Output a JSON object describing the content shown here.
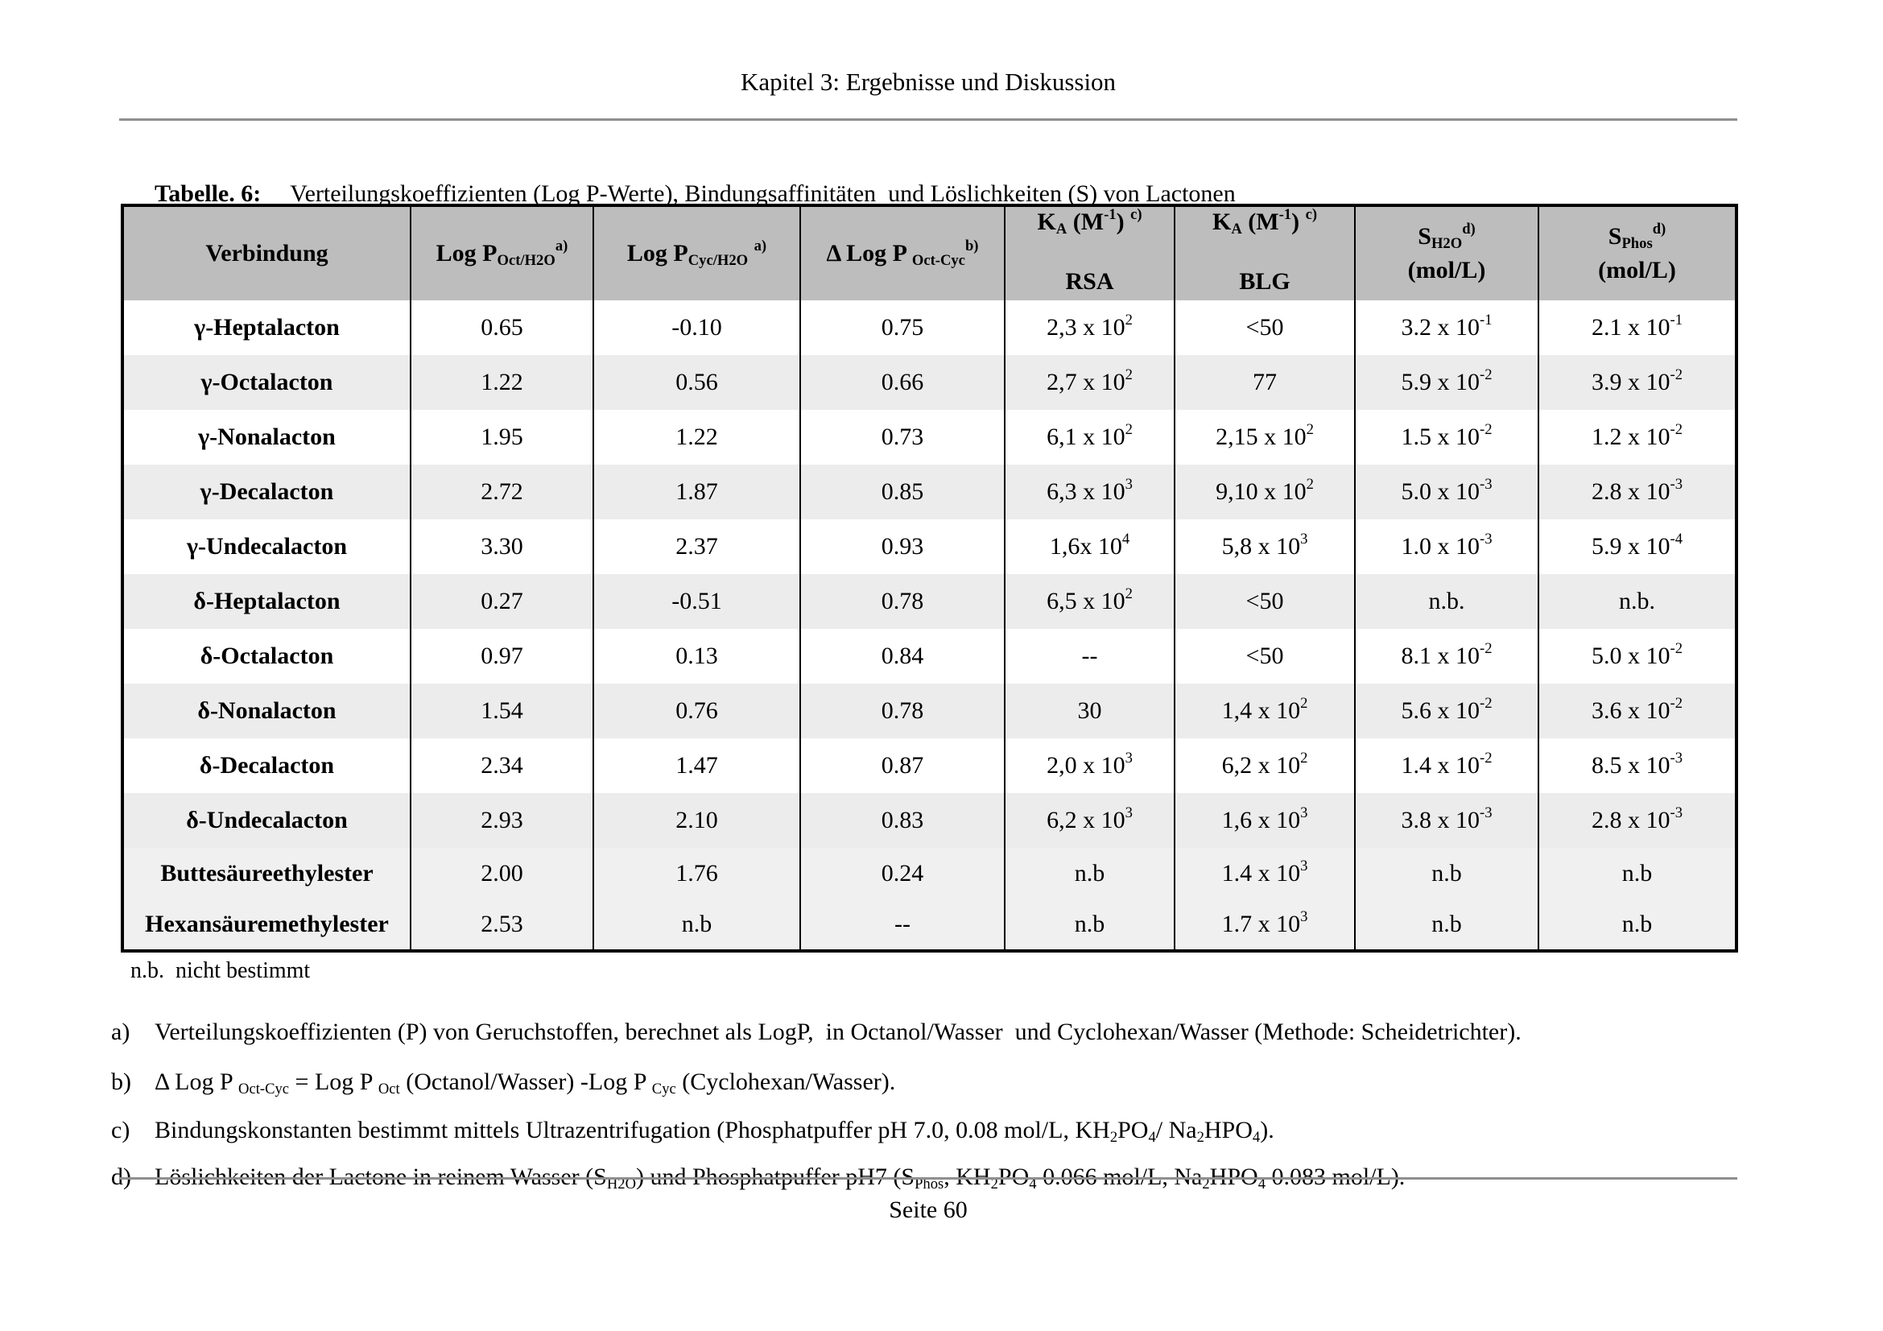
{
  "page": {
    "header": "Kapitel 3: Ergebnisse und Diskussion",
    "footer": "Seite 60"
  },
  "caption": {
    "label": "Tabelle. 6:",
    "text": "Verteilungskoeffizienten (Log P-Werte), Bindungsaffinitäten  und Löslichkeiten (S) von Lactonen"
  },
  "table": {
    "columns": [
      {
        "id": "verbindung",
        "label": "Verbindung"
      },
      {
        "id": "logp_oct",
        "label": "Log P~Oct/H2O~^a)^"
      },
      {
        "id": "logp_cyc",
        "label": "Log P~Cyc/H2O~ ^a)^"
      },
      {
        "id": "dlogp",
        "label": "Δ Log P ~Oct-Cyc~^b)^"
      },
      {
        "id": "ka_rsa",
        "label_top": "K~A~ (M^-1^) ^c)^",
        "label_bottom": "RSA"
      },
      {
        "id": "ka_blg",
        "label_top": "K~A~ (M^-1^) ^c)^",
        "label_bottom": "BLG"
      },
      {
        "id": "s_h2o",
        "label_top": "S~H2O~^d)^",
        "label_bottom": "(mol/L)"
      },
      {
        "id": "s_phos",
        "label_top": "S~Phos~^d)^",
        "label_bottom": "(mol/L)"
      }
    ],
    "rows": [
      [
        "γ-Heptalacton",
        "0.65",
        "-0.10",
        "0.75",
        "2,3 x 10^2^",
        "<50",
        "3.2 x 10^-1^",
        "2.1 x 10^-1^"
      ],
      [
        "γ-Octalacton",
        "1.22",
        "0.56",
        "0.66",
        "2,7 x 10^2^",
        "77",
        "5.9 x 10^-2^",
        "3.9 x 10^-2^"
      ],
      [
        "γ-Nonalacton",
        "1.95",
        "1.22",
        "0.73",
        "6,1 x 10^2^",
        "2,15 x 10^2^",
        "1.5 x 10^-2^",
        "1.2 x 10^-2^"
      ],
      [
        "γ-Decalacton",
        "2.72",
        "1.87",
        "0.85",
        "6,3 x 10^3^",
        "9,10 x 10^2^",
        "5.0 x 10^-3^",
        "2.8 x 10^-3^"
      ],
      [
        "γ-Undecalacton",
        "3.30",
        "2.37",
        "0.93",
        "1,6x 10^4^",
        "5,8 x 10^3^",
        "1.0 x 10^-3^",
        "5.9 x 10^-4^"
      ],
      [
        "δ-Heptalacton",
        "0.27",
        "-0.51",
        "0.78",
        "6,5 x 10^2^",
        "<50",
        "n.b.",
        "n.b."
      ],
      [
        "δ-Octalacton",
        "0.97",
        "0.13",
        "0.84",
        "--",
        "<50",
        "8.1 x 10^-2^",
        "5.0 x 10^-2^"
      ],
      [
        "δ-Nonalacton",
        "1.54",
        "0.76",
        "0.78",
        "30",
        "1,4 x 10^2^",
        "5.6 x 10^-2^",
        "3.6 x 10^-2^"
      ],
      [
        "δ-Decalacton",
        "2.34",
        "1.47",
        "0.87",
        "2,0 x 10^3^",
        "6,2 x 10^2^",
        "1.4 x 10^-2^",
        "8.5 x 10^-3^"
      ],
      [
        "δ-Undecalacton",
        "2.93",
        "2.10",
        "0.83",
        "6,2 x 10^3^",
        "1,6 x 10^3^",
        "3.8 x 10^-3^",
        "2.8 x 10^-3^"
      ],
      [
        "Buttesäureethylester",
        "2.00",
        "1.76",
        "0.24",
        "n.b",
        "1.4 x 10^3^",
        "n.b",
        "n.b"
      ],
      [
        "Hexansäuremethylester",
        "2.53",
        "n.b",
        "--",
        "n.b",
        "1.7 x 10^3^",
        "n.b",
        "n.b"
      ]
    ]
  },
  "footnotes": {
    "nb": "n.b.  nicht bestimmt",
    "items": [
      {
        "label": "a)",
        "text": "Verteilungskoeffizienten (P) von Geruchstoffen, berechnet als LogP,  in Octanol/Wasser  und Cyclohexan/Wasser (Methode: Scheidetrichter)."
      },
      {
        "label": "b)",
        "text": "Δ Log P ~Oct-Cyc~ = Log P ~Oct~ (Octanol/Wasser) -Log P ~Cyc~ (Cyclohexan/Wasser)."
      },
      {
        "label": "c)",
        "text": "Bindungskonstanten bestimmt mittels Ultrazentrifugation (Phosphatpuffer pH 7.0, 0.08 mol/L, KH~2~PO~4~/ Na~2~HPO~4~)."
      },
      {
        "label": "d)",
        "text": "Löslichkeiten der Lactone in reinem Wasser (S~H2O~) und Phosphatpuffer pH7 (S~Phos~, KH~2~PO~4~ 0.066 mol/L, Na~2~HPO~4~ 0.083 mol/L)."
      }
    ]
  },
  "colors": {
    "header_bg": "#bdbdbd",
    "row_alt_bg": "#ececec",
    "rule": "#8f8f8f"
  }
}
